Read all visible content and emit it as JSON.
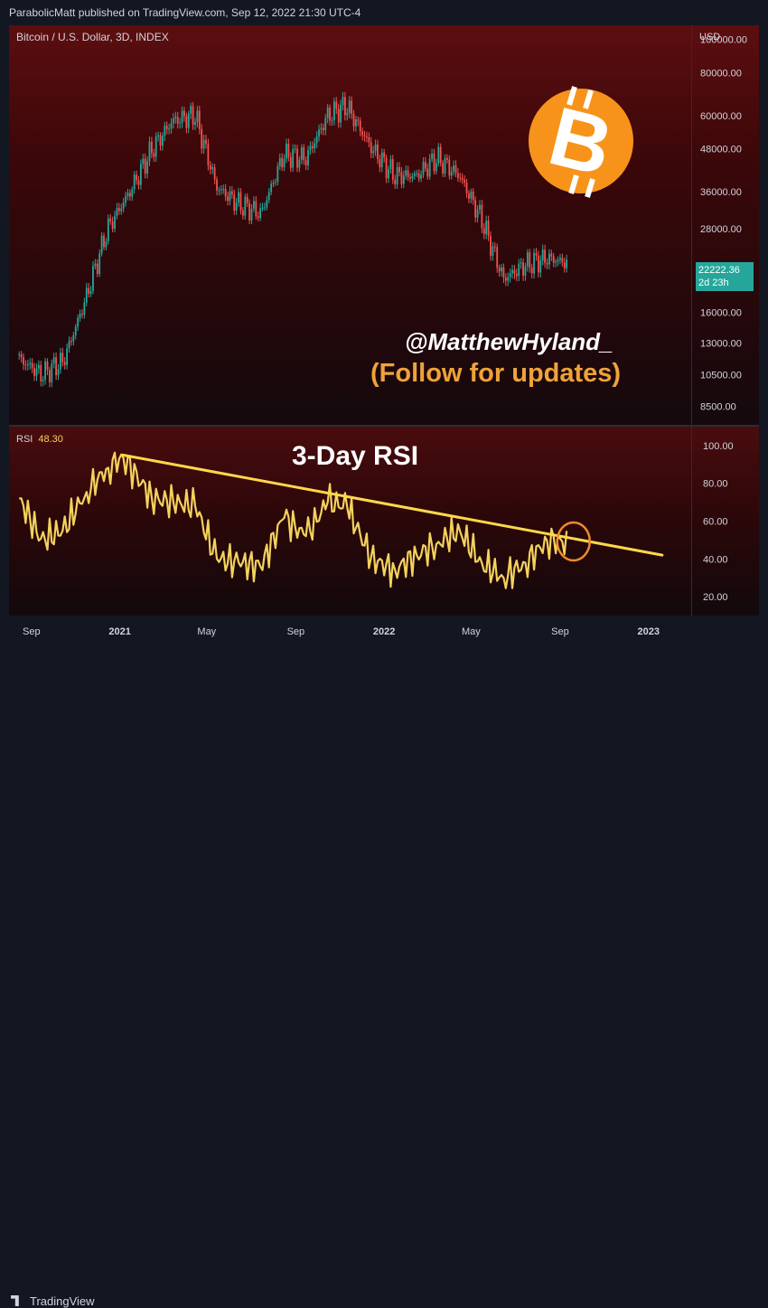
{
  "header": {
    "published": "ParabolicMatt published on TradingView.com, Sep 12, 2022 21:30 UTC-4"
  },
  "colors": {
    "rsi_line": "#f4d25c",
    "trendline": "#ffd84a",
    "candle_up": "#26a69a",
    "candle_down": "#ef5350",
    "bitcoin": "#f7931a",
    "follow_text": "#f0a23a",
    "price_tag": "#26a69a"
  },
  "price_pane": {
    "symbol": "Bitcoin / U.S. Dollar, 3D, INDEX",
    "currency": "USD",
    "axis_ticks": [
      "100000.00",
      "80000.00",
      "60000.00",
      "48000.00",
      "36000.00",
      "28000.00",
      "16000.00",
      "13000.00",
      "10500.00",
      "8500.00"
    ],
    "last_price": "22222.36",
    "countdown": "2d 23h",
    "handle": "@MatthewHyland_",
    "follow": "(Follow for updates)",
    "logo": "bitcoin-logo-icon"
  },
  "rsi_pane": {
    "label": "RSI",
    "value": "48.30",
    "title": "3-Day RSI",
    "axis_ticks": [
      "100.00",
      "80.00",
      "60.00",
      "40.00",
      "20.00"
    ]
  },
  "time_axis": {
    "labels": [
      "Sep",
      "2021",
      "May",
      "Sep",
      "2022",
      "May",
      "Sep",
      "2023"
    ]
  },
  "footer": {
    "brand": "TradingView"
  },
  "chart_data": [
    {
      "type": "candlestick",
      "title": "Bitcoin / U.S. Dollar, 3D, INDEX",
      "yscale": "log",
      "ylim": [
        7500,
        110000
      ],
      "x": [
        "2020-08-15",
        "2020-09-15",
        "2020-10-15",
        "2020-11-15",
        "2020-12-15",
        "2021-01-15",
        "2021-02-15",
        "2021-03-15",
        "2021-04-15",
        "2021-05-15",
        "2021-06-15",
        "2021-07-15",
        "2021-08-15",
        "2021-09-15",
        "2021-10-15",
        "2021-11-10",
        "2021-12-15",
        "2022-01-15",
        "2022-02-15",
        "2022-03-15",
        "2022-04-15",
        "2022-05-15",
        "2022-06-15",
        "2022-07-15",
        "2022-08-15",
        "2022-09-12"
      ],
      "close": [
        11700,
        10500,
        11500,
        17500,
        28000,
        36000,
        48000,
        58000,
        60000,
        37000,
        33000,
        31000,
        46000,
        45000,
        60000,
        64000,
        48000,
        40000,
        40000,
        45000,
        40000,
        30000,
        20000,
        22000,
        23000,
        22222
      ],
      "last_price": 22222.36
    },
    {
      "type": "line",
      "title": "3-Day RSI",
      "ylim": [
        10,
        110
      ],
      "x": [
        "2020-08-15",
        "2020-09-15",
        "2020-10-15",
        "2020-11-15",
        "2020-12-15",
        "2021-01-05",
        "2021-02-15",
        "2021-03-15",
        "2021-04-15",
        "2021-05-15",
        "2021-06-15",
        "2021-07-15",
        "2021-08-15",
        "2021-09-15",
        "2021-10-15",
        "2021-11-10",
        "2021-12-15",
        "2022-01-15",
        "2022-02-15",
        "2022-03-15",
        "2022-04-15",
        "2022-05-15",
        "2022-06-15",
        "2022-07-15",
        "2022-08-15",
        "2022-09-12"
      ],
      "y": [
        72,
        50,
        55,
        75,
        88,
        94,
        72,
        70,
        68,
        40,
        38,
        36,
        62,
        52,
        70,
        68,
        40,
        34,
        42,
        48,
        55,
        38,
        30,
        38,
        50,
        48.3
      ],
      "trendline": {
        "x": [
          "2021-01-05",
          "2023-01-20"
        ],
        "y": [
          95,
          42
        ]
      },
      "highlight": {
        "x": "2022-09-12",
        "y": 48.3
      }
    }
  ]
}
